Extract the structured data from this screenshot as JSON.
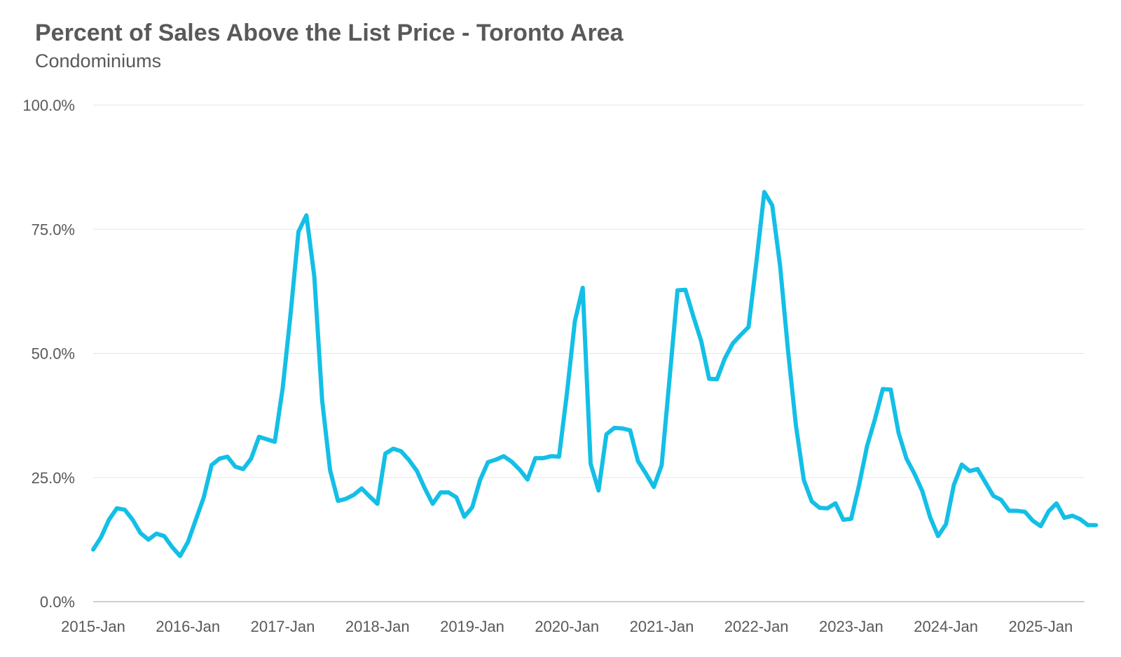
{
  "chart_data": {
    "type": "line",
    "title": "Percent of Sales Above the List Price - Toronto Area",
    "subtitle": "Condominiums",
    "xlabel": "",
    "ylabel": "",
    "ylim": [
      0,
      100
    ],
    "y_ticks": [
      "0.0%",
      "25.0%",
      "50.0%",
      "75.0%",
      "100.0%"
    ],
    "x_ticks": [
      "2015-Jan",
      "2016-Jan",
      "2017-Jan",
      "2018-Jan",
      "2019-Jan",
      "2020-Jan",
      "2021-Jan",
      "2022-Jan",
      "2023-Jan",
      "2024-Jan",
      "2025-Jan"
    ],
    "x_start": "2015-Jan",
    "x_end": "2025-Aug",
    "grid": true,
    "line_color": "#13BFE6",
    "series": [
      {
        "values": [
          10.5,
          13,
          16.5,
          18.8,
          18.5,
          16.5,
          13.8,
          12.5,
          13.7,
          13.2,
          11,
          9.2,
          12,
          16.5,
          21,
          27.5,
          28.8,
          29.2,
          27.2,
          26.7,
          28.8,
          33.2,
          32.7,
          32.2,
          43,
          58,
          74.5,
          77.8,
          65.5,
          40.5,
          26.5,
          20.3,
          20.7,
          21.5,
          22.8,
          21.2,
          19.7,
          29.8,
          30.8,
          30.3,
          28.5,
          26.3,
          22.8,
          19.7,
          22,
          22,
          21,
          17.1,
          19,
          24.5,
          28.1,
          28.6,
          29.3,
          28.2,
          26.6,
          24.6,
          28.9,
          28.9,
          29.3,
          29.2,
          42,
          56.5,
          63.2,
          27.8,
          22.4,
          33.7,
          35,
          34.9,
          34.5,
          28.3,
          25.8,
          23.1,
          27.5,
          45,
          62.7,
          62.8,
          57.5,
          52.5,
          44.9,
          44.8,
          49,
          52,
          53.7,
          55.3,
          68.5,
          82.5,
          79.8,
          67.5,
          50.5,
          35.5,
          24.5,
          20.2,
          18.9,
          18.8,
          19.8,
          16.5,
          16.7,
          23.5,
          31.3,
          36.7,
          42.8,
          42.7,
          34,
          28.8,
          25.8,
          22.3,
          17,
          13.2,
          15.6,
          23.5,
          27.6,
          26.3,
          26.7,
          24,
          21.3,
          20.5,
          18.3,
          18.3,
          18.1,
          16.3,
          15.2,
          18.2,
          19.8,
          16.9,
          17.3,
          16.6,
          15.4,
          15.4
        ]
      }
    ]
  }
}
